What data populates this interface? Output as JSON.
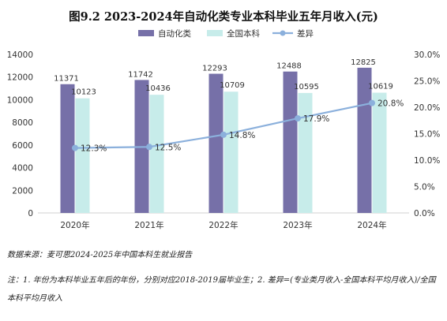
{
  "chart_data": {
    "type": "bar",
    "title": "图9.2  2023-2024年自动化类专业本科毕业五年月收入(元)",
    "categories": [
      "2020年",
      "2021年",
      "2022年",
      "2023年",
      "2024年"
    ],
    "series": [
      {
        "name": "自动化类",
        "type": "bar",
        "axis": "left",
        "color": "#7670a8",
        "values": [
          11371,
          11742,
          12293,
          12488,
          12825
        ],
        "labels": [
          "11371",
          "11742",
          "12293",
          "12488",
          "12825"
        ]
      },
      {
        "name": "全国本科",
        "type": "bar",
        "axis": "left",
        "color": "#c7ecea",
        "values": [
          10123,
          10436,
          10709,
          10595,
          10619
        ],
        "labels": [
          "10123",
          "10436",
          "10709",
          "10595",
          "10619"
        ]
      },
      {
        "name": "差异",
        "type": "line",
        "axis": "right",
        "color": "#8bb0dc",
        "values": [
          12.3,
          12.5,
          14.8,
          17.9,
          20.8
        ],
        "labels": [
          "12.3%",
          "12.5%",
          "14.8%",
          "17.9%",
          "20.8%"
        ]
      }
    ],
    "ylim": [
      0,
      14000
    ],
    "yticks": [
      "0",
      "2000",
      "4000",
      "6000",
      "8000",
      "10000",
      "12000",
      "14000"
    ],
    "y2lim": [
      0,
      30
    ],
    "y2ticks": [
      "0.0%",
      "5.0%",
      "10.0%",
      "15.0%",
      "20.0%",
      "25.0%",
      "30.0%"
    ],
    "legend_position": "top",
    "grid": false
  },
  "footer": {
    "source": "数据来源：麦可思2024-2025年中国本科生就业报告",
    "note": "注：1. 年份为本科毕业五年后的年份，分别对应2018-2019届毕业生；2. 差异=(专业类月收入-全国本科平均月收入)/全国本科平均月收入"
  }
}
